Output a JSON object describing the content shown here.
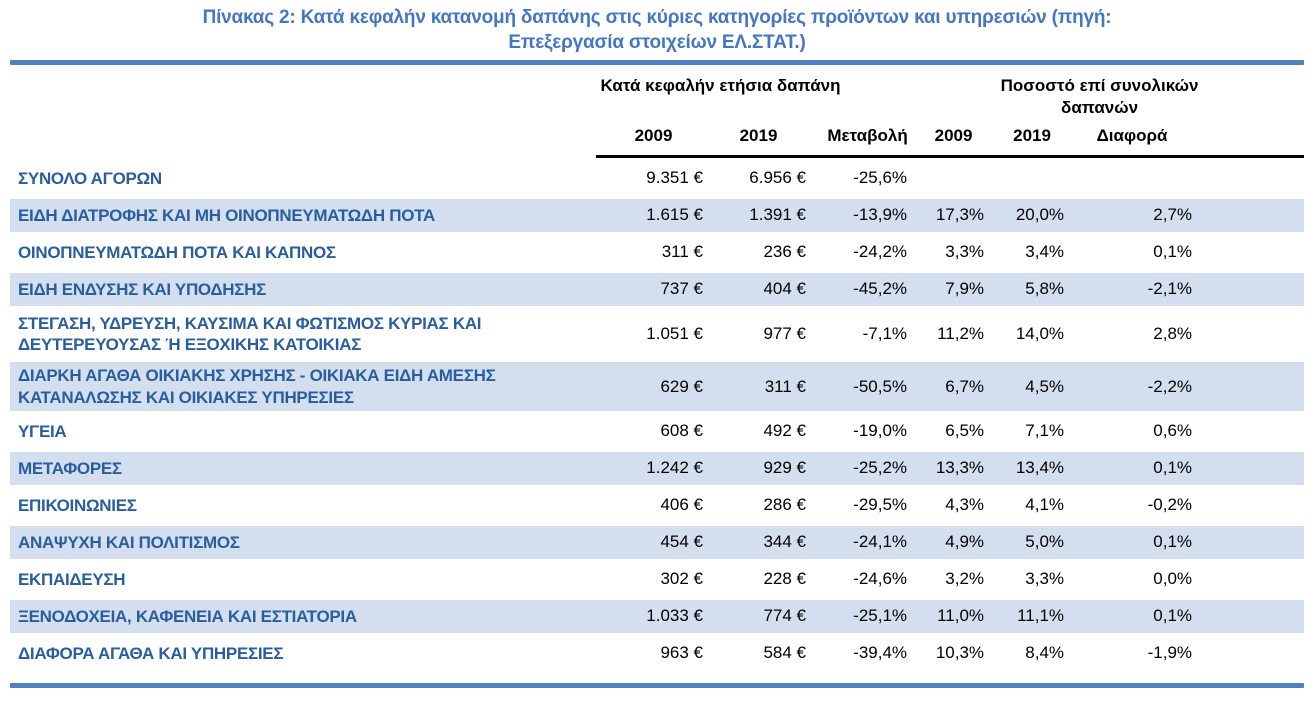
{
  "title_lines": [
    "Πίνακας 2: Κατά κεφαλήν κατανομή δαπάνης στις κύριες κατηγορίες προϊόντων και υπηρεσιών (πηγή:",
    "Επεξεργασία στοιχείων ΕΛ.ΣΤΑΤ.)"
  ],
  "colors": {
    "title_blue": "#4576C4",
    "rule_blue": "#4F81BD",
    "row_stripe_blue": "#D3DFEE",
    "category_text_blue": "#2A5D9E",
    "header_underline_black": "#000000"
  },
  "table": {
    "group_headers": {
      "per_capita": "Κατά κεφαλήν ετήσια δαπάνη",
      "share_of_total": "Ποσοστό επί συνολικών δαπανών"
    },
    "columns": {
      "year1": "2009",
      "year2": "2019",
      "change": "Μεταβολή",
      "pct_year1": "2009",
      "pct_year2": "2019",
      "diff": "Διαφορά"
    },
    "rows": [
      {
        "label": "ΣΥΝΟΛΟ ΑΓΟΡΩΝ",
        "eur_2009": "9.351 €",
        "eur_2019": "6.956 €",
        "change": "-25,6%",
        "pct_2009": "",
        "pct_2019": "",
        "diff": ""
      },
      {
        "label": "ΕΙΔΗ ΔΙΑΤΡΟΦΗΣ ΚΑΙ ΜΗ ΟΙΝΟΠΝΕΥΜΑΤΩΔΗ ΠΟΤΑ",
        "eur_2009": "1.615 €",
        "eur_2019": "1.391 €",
        "change": "-13,9%",
        "pct_2009": "17,3%",
        "pct_2019": "20,0%",
        "diff": "2,7%"
      },
      {
        "label": "ΟΙΝΟΠΝΕΥΜΑΤΩΔΗ ΠΟΤΑ ΚΑΙ ΚΑΠΝΟΣ",
        "eur_2009": "311 €",
        "eur_2019": "236 €",
        "change": "-24,2%",
        "pct_2009": "3,3%",
        "pct_2019": "3,4%",
        "diff": "0,1%"
      },
      {
        "label": "ΕΙΔΗ ΕΝΔΥΣΗΣ ΚΑΙ ΥΠΟΔΗΣΗΣ",
        "eur_2009": "737 €",
        "eur_2019": "404 €",
        "change": "-45,2%",
        "pct_2009": "7,9%",
        "pct_2019": "5,8%",
        "diff": "-2,1%"
      },
      {
        "label": "ΣΤΕΓΑΣΗ, ΥΔΡΕΥΣΗ, ΚΑΥΣΙΜΑ ΚΑΙ ΦΩΤΙΣΜΟΣ ΚΥΡΙΑΣ ΚΑΙ ΔΕΥΤΕΡΕΥΟΥΣΑΣ Ή ΕΞΟΧΙΚΗΣ ΚΑΤΟΙΚΙΑΣ",
        "eur_2009": "1.051 €",
        "eur_2019": "977 €",
        "change": "-7,1%",
        "pct_2009": "11,2%",
        "pct_2019": "14,0%",
        "diff": "2,8%"
      },
      {
        "label": "ΔΙΑΡΚΗ ΑΓΑΘΑ ΟΙΚΙΑΚΗΣ ΧΡΗΣΗΣ - ΟΙΚΙΑΚΑ ΕΙΔΗ ΑΜΕΣΗΣ ΚΑΤΑΝΑΛΩΣΗΣ ΚΑΙ ΟΙΚΙΑΚΕΣ ΥΠΗΡΕΣΙΕΣ",
        "eur_2009": "629 €",
        "eur_2019": "311 €",
        "change": "-50,5%",
        "pct_2009": "6,7%",
        "pct_2019": "4,5%",
        "diff": "-2,2%"
      },
      {
        "label": "ΥΓΕΙΑ",
        "eur_2009": "608 €",
        "eur_2019": "492 €",
        "change": "-19,0%",
        "pct_2009": "6,5%",
        "pct_2019": "7,1%",
        "diff": "0,6%"
      },
      {
        "label": "ΜΕΤΑΦΟΡΕΣ",
        "eur_2009": "1.242 €",
        "eur_2019": "929 €",
        "change": "-25,2%",
        "pct_2009": "13,3%",
        "pct_2019": "13,4%",
        "diff": "0,1%"
      },
      {
        "label": "ΕΠΙΚΟΙΝΩΝΙΕΣ",
        "eur_2009": "406 €",
        "eur_2019": "286 €",
        "change": "-29,5%",
        "pct_2009": "4,3%",
        "pct_2019": "4,1%",
        "diff": "-0,2%"
      },
      {
        "label": "ΑΝΑΨΥΧΗ ΚΑΙ ΠΟΛΙΤΙΣΜΟΣ",
        "eur_2009": "454 €",
        "eur_2019": "344 €",
        "change": "-24,1%",
        "pct_2009": "4,9%",
        "pct_2019": "5,0%",
        "diff": "0,1%"
      },
      {
        "label": "ΕΚΠΑΙΔΕΥΣΗ",
        "eur_2009": "302 €",
        "eur_2019": "228 €",
        "change": "-24,6%",
        "pct_2009": "3,2%",
        "pct_2019": "3,3%",
        "diff": "0,0%"
      },
      {
        "label": "ΞΕΝΟΔΟΧΕΙΑ, ΚΑΦΕΝΕΙΑ ΚΑΙ ΕΣΤΙΑΤΟΡΙΑ",
        "eur_2009": "1.033 €",
        "eur_2019": "774 €",
        "change": "-25,1%",
        "pct_2009": "11,0%",
        "pct_2019": "11,1%",
        "diff": "0,1%"
      },
      {
        "label": "ΔΙΑΦΟΡΑ ΑΓΑΘΑ ΚΑΙ ΥΠΗΡΕΣΙΕΣ",
        "eur_2009": "963 €",
        "eur_2019": "584 €",
        "change": "-39,4%",
        "pct_2009": "10,3%",
        "pct_2019": "8,4%",
        "diff": "-1,9%"
      }
    ]
  }
}
